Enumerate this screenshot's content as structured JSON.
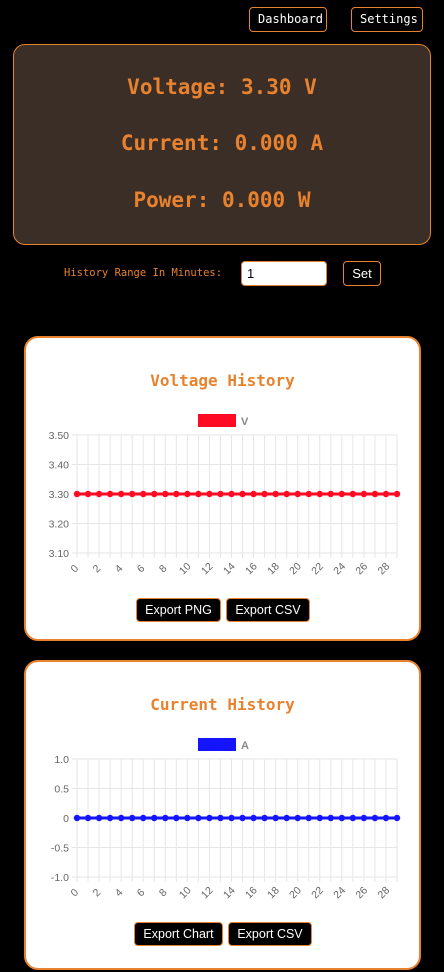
{
  "nav": {
    "dashboard_label": "Dashboard",
    "settings_label": "Settings"
  },
  "readout": {
    "voltage_text": "Voltage: 3.30 V",
    "current_text": "Current: 0.000 A",
    "power_text": "Power: 0.000 W"
  },
  "history_range": {
    "label": "History Range In Minutes:",
    "value": "1",
    "set_label": "Set"
  },
  "voltage_card": {
    "title": "Voltage History",
    "export_png_label": "Export PNG",
    "export_csv_label": "Export CSV"
  },
  "current_card": {
    "title": "Current History",
    "export_chart_label": "Export Chart",
    "export_csv_label": "Export CSV"
  },
  "colors": {
    "accent": "#e8822e",
    "panel_bg": "#3a2e27",
    "voltage_series": "#ff0a22",
    "current_series": "#1414ff"
  },
  "chart_data": [
    {
      "type": "line",
      "title": "Voltage History",
      "x": [
        0,
        1,
        2,
        3,
        4,
        5,
        6,
        7,
        8,
        9,
        10,
        11,
        12,
        13,
        14,
        15,
        16,
        17,
        18,
        19,
        20,
        21,
        22,
        23,
        24,
        25,
        26,
        27,
        28,
        29
      ],
      "x_tick_labels": [
        "0",
        "2",
        "4",
        "6",
        "8",
        "10",
        "12",
        "14",
        "16",
        "18",
        "20",
        "22",
        "24",
        "26",
        "28"
      ],
      "y_tick_labels": [
        "3.50",
        "3.40",
        "3.30",
        "3.20",
        "3.10"
      ],
      "ylim": [
        3.1,
        3.5
      ],
      "grid": true,
      "legend_position": "top-center",
      "series": [
        {
          "name": "V",
          "color": "#ff0a22",
          "values": [
            3.3,
            3.3,
            3.3,
            3.3,
            3.3,
            3.3,
            3.3,
            3.3,
            3.3,
            3.3,
            3.3,
            3.3,
            3.3,
            3.3,
            3.3,
            3.3,
            3.3,
            3.3,
            3.3,
            3.3,
            3.3,
            3.3,
            3.3,
            3.3,
            3.3,
            3.3,
            3.3,
            3.3,
            3.3,
            3.3
          ]
        }
      ]
    },
    {
      "type": "line",
      "title": "Current History",
      "x": [
        0,
        1,
        2,
        3,
        4,
        5,
        6,
        7,
        8,
        9,
        10,
        11,
        12,
        13,
        14,
        15,
        16,
        17,
        18,
        19,
        20,
        21,
        22,
        23,
        24,
        25,
        26,
        27,
        28,
        29
      ],
      "x_tick_labels": [
        "0",
        "2",
        "4",
        "6",
        "8",
        "10",
        "12",
        "14",
        "16",
        "18",
        "20",
        "22",
        "24",
        "26",
        "28"
      ],
      "y_tick_labels": [
        "1.0",
        "0.5",
        "0",
        "-0.5",
        "-1.0"
      ],
      "ylim": [
        -1.0,
        1.0
      ],
      "grid": true,
      "legend_position": "top-center",
      "series": [
        {
          "name": "A",
          "color": "#1414ff",
          "values": [
            0,
            0,
            0,
            0,
            0,
            0,
            0,
            0,
            0,
            0,
            0,
            0,
            0,
            0,
            0,
            0,
            0,
            0,
            0,
            0,
            0,
            0,
            0,
            0,
            0,
            0,
            0,
            0,
            0,
            0
          ]
        }
      ]
    }
  ]
}
